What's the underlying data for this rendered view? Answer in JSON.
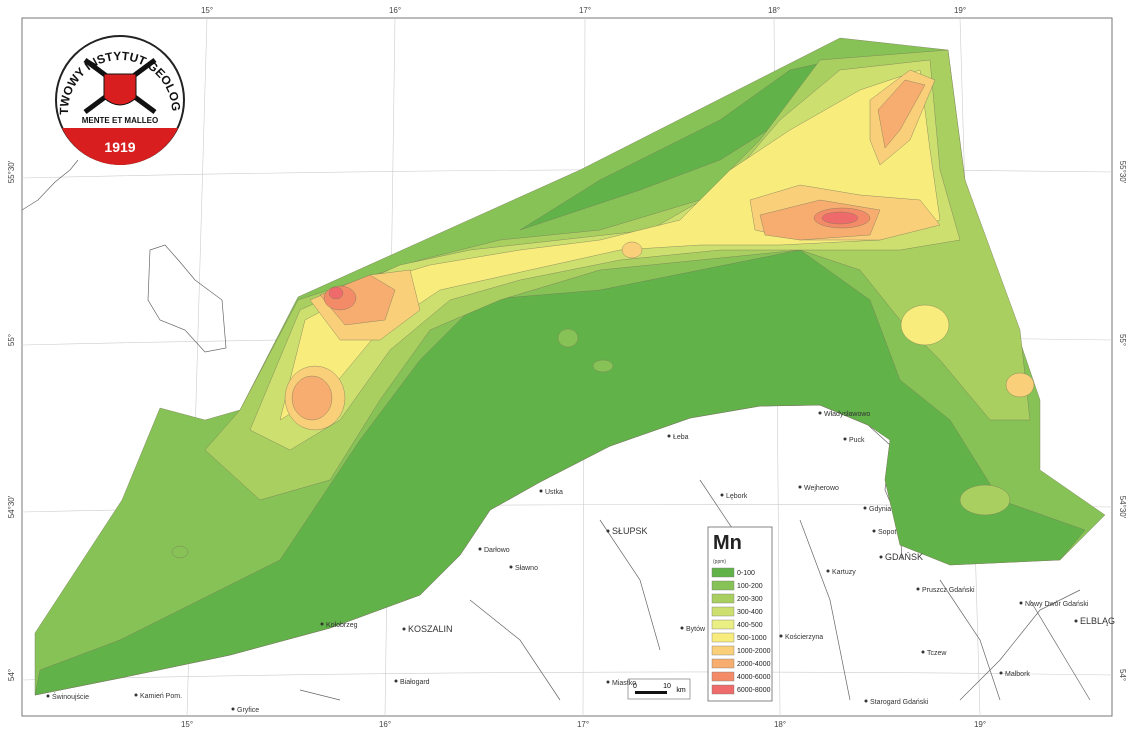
{
  "logo": {
    "ring_text": "PAŃSTWOWY INSTYTUT GEOLOGICZNY",
    "motto": "MENTE ET MALLEO",
    "year": "1919"
  },
  "graticule": {
    "top": [
      "15°",
      "16°",
      "17°",
      "18°",
      "19°"
    ],
    "bottom": [
      "15°",
      "16°",
      "17°",
      "18°",
      "19°"
    ],
    "left": [
      "55°30'",
      "55°",
      "54°30'",
      "54°"
    ],
    "right": [
      "55°30'",
      "55°",
      "54°30'",
      "54°"
    ]
  },
  "places": [
    "Świnoujście",
    "Kamień Pom.",
    "Gryfice",
    "Kołobrzeg",
    "Białogard",
    "KOSZALIN",
    "Darłowo",
    "Sławno",
    "Ustka",
    "SŁUPSK",
    "Łeba",
    "Lębork",
    "Bytów",
    "Miastko",
    "Władysławowo",
    "Puck",
    "Wejherowo",
    "Gdynia",
    "Sopot",
    "GDAŃSK",
    "Kartuzy",
    "Pruszcz Gdański",
    "Tczew",
    "Starogard Gdański",
    "Malbork",
    "Nowy Dwór Gdański",
    "ELBLĄG",
    "Kościerzyna"
  ],
  "legend": {
    "title": "Mn",
    "unit": "(ppm)",
    "items": [
      {
        "label": "0-100",
        "color": "#62b24a"
      },
      {
        "label": "100-200",
        "color": "#86c255"
      },
      {
        "label": "200-300",
        "color": "#a8cf5f"
      },
      {
        "label": "300-400",
        "color": "#cde06f"
      },
      {
        "label": "400-500",
        "color": "#eaef84"
      },
      {
        "label": "500-1000",
        "color": "#f8ec7c"
      },
      {
        "label": "1000-2000",
        "color": "#f9cf79"
      },
      {
        "label": "2000-4000",
        "color": "#f6ad6f"
      },
      {
        "label": "4000-6000",
        "color": "#f38b68"
      },
      {
        "label": "6000-8000",
        "color": "#ef6a6a"
      }
    ]
  },
  "scale_bar": {
    "ticks": [
      "0",
      "10"
    ],
    "unit": "km"
  }
}
